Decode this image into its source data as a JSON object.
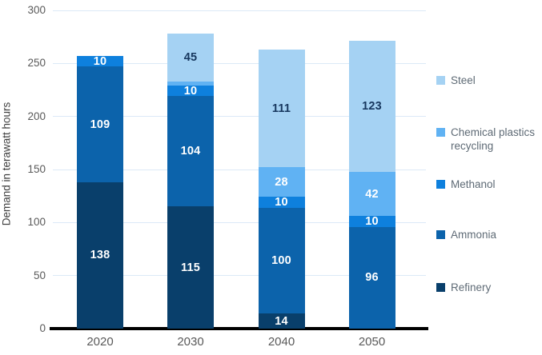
{
  "chart_data": {
    "type": "bar",
    "stacked": true,
    "title": "",
    "xlabel": "",
    "ylabel": "Demand in terawatt hours",
    "categories": [
      "2020",
      "2030",
      "2040",
      "2050"
    ],
    "series": [
      {
        "name": "Refinery",
        "color": "#093f6b",
        "label_color": "#ffffff",
        "values": [
          138,
          115,
          14,
          0
        ]
      },
      {
        "name": "Ammonia",
        "color": "#0c63ab",
        "label_color": "#ffffff",
        "values": [
          109,
          104,
          100,
          96
        ]
      },
      {
        "name": "Methanol",
        "color": "#0e80dd",
        "label_color": "#ffffff",
        "values": [
          10,
          10,
          10,
          10
        ]
      },
      {
        "name": "Chemical plastics recycling",
        "color": "#60b2f3",
        "label_color": "#ffffff",
        "values": [
          0,
          4,
          28,
          42
        ]
      },
      {
        "name": "Steel",
        "color": "#a5d2f3",
        "label_color": "#17375e",
        "values": [
          0,
          45,
          111,
          123
        ]
      }
    ],
    "totals": [
      257,
      278,
      263,
      271
    ],
    "min_label_value": 10,
    "ylim": [
      0,
      300
    ],
    "y_ticks": [
      0,
      50,
      100,
      150,
      200,
      250,
      300
    ],
    "legend_position": "right",
    "legend_order": [
      "Steel",
      "Chemical plastics recycling",
      "Methanol",
      "Ammonia",
      "Refinery"
    ],
    "grid": "horizontal"
  },
  "colors": {
    "gridline": "#dce9f7",
    "axis_line": "#000000",
    "tick_label": "#595959",
    "axis_title": "#404040",
    "legend_text": "#5f6b76",
    "background": "#ffffff"
  }
}
